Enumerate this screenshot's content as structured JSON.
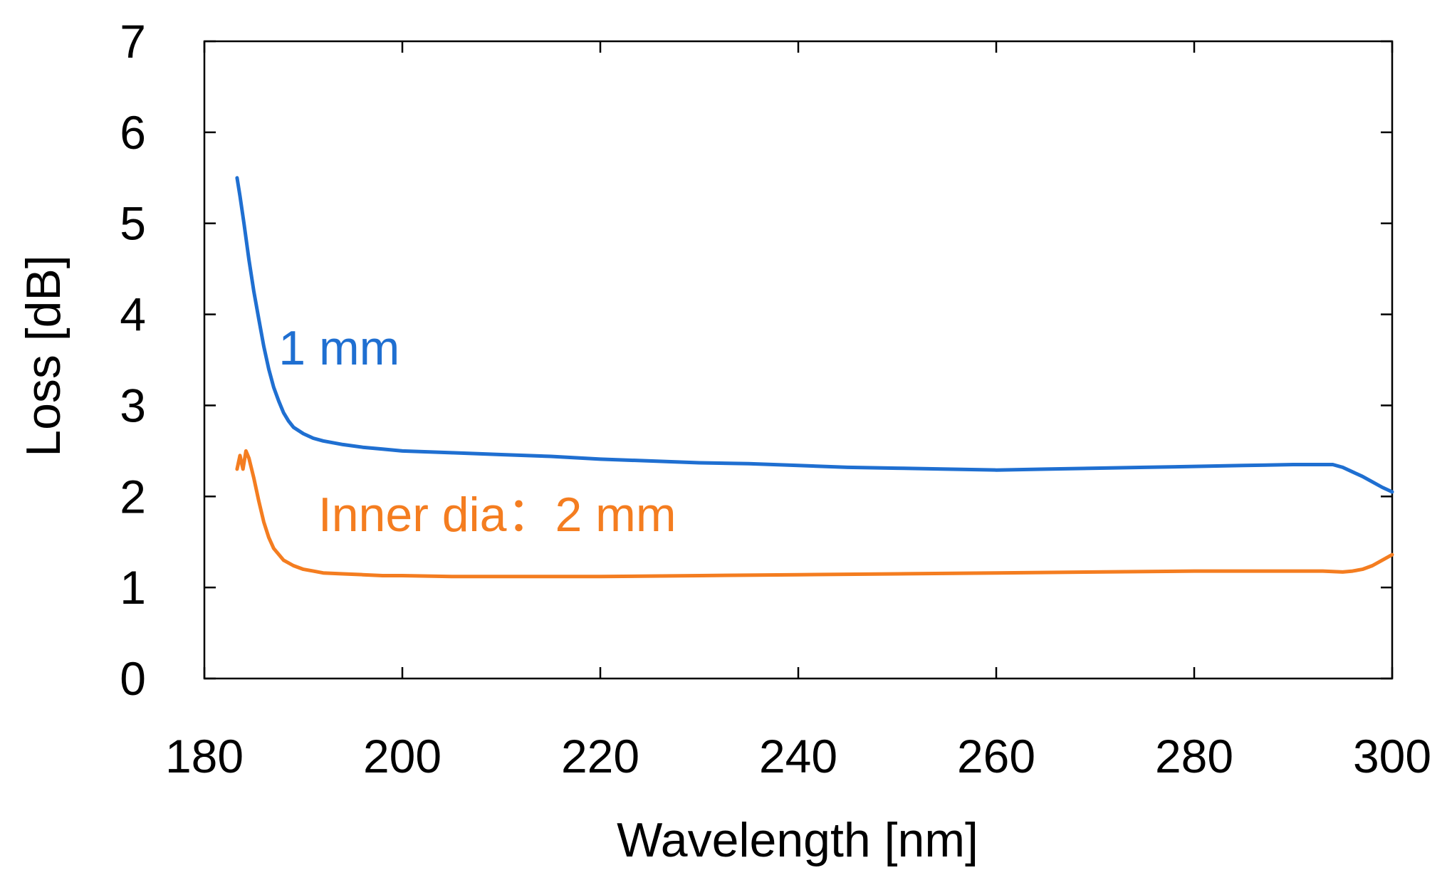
{
  "chart_data": {
    "type": "line",
    "title": "",
    "xlabel": "Wavelength [nm]",
    "ylabel": "Loss [dB]",
    "xlim": [
      180,
      300
    ],
    "ylim": [
      0,
      7
    ],
    "xticks": [
      180,
      200,
      220,
      240,
      260,
      280,
      300
    ],
    "yticks": [
      0,
      1,
      2,
      3,
      4,
      5,
      6,
      7
    ],
    "grid": false,
    "legend": "none",
    "series": [
      {
        "name": "1 mm",
        "color": "#1f6fd1",
        "x": [
          183.3,
          183.6,
          184.0,
          184.5,
          185.0,
          185.5,
          186.0,
          186.5,
          187.0,
          187.5,
          188.0,
          188.5,
          189.0,
          190.0,
          191.0,
          192.0,
          194.0,
          196.0,
          198.0,
          200.0,
          205.0,
          210.0,
          215.0,
          220.0,
          225.0,
          230.0,
          235.0,
          240.0,
          245.0,
          250.0,
          255.0,
          260.0,
          265.0,
          270.0,
          275.0,
          280.0,
          285.0,
          290.0,
          292.0,
          294.0,
          295.0,
          296.0,
          297.0,
          298.0,
          299.0,
          300.0
        ],
        "y": [
          5.5,
          5.3,
          5.0,
          4.6,
          4.25,
          3.95,
          3.65,
          3.4,
          3.2,
          3.05,
          2.92,
          2.83,
          2.76,
          2.69,
          2.64,
          2.61,
          2.57,
          2.54,
          2.52,
          2.5,
          2.48,
          2.46,
          2.44,
          2.41,
          2.39,
          2.37,
          2.36,
          2.34,
          2.32,
          2.31,
          2.3,
          2.29,
          2.3,
          2.31,
          2.32,
          2.33,
          2.34,
          2.35,
          2.35,
          2.35,
          2.32,
          2.27,
          2.22,
          2.16,
          2.1,
          2.05
        ]
      },
      {
        "name": "Inner dia：2 mm",
        "color": "#f47d20",
        "x": [
          183.3,
          183.6,
          183.9,
          184.2,
          184.5,
          185.0,
          185.5,
          186.0,
          186.5,
          187.0,
          188.0,
          189.0,
          190.0,
          191.0,
          192.0,
          194.0,
          196.0,
          198.0,
          200.0,
          205.0,
          210.0,
          220.0,
          230.0,
          240.0,
          250.0,
          260.0,
          270.0,
          280.0,
          285.0,
          290.0,
          293.0,
          295.0,
          296.0,
          297.0,
          298.0,
          299.0,
          300.0
        ],
        "y": [
          2.3,
          2.45,
          2.3,
          2.5,
          2.42,
          2.2,
          1.95,
          1.72,
          1.55,
          1.43,
          1.3,
          1.24,
          1.2,
          1.18,
          1.16,
          1.15,
          1.14,
          1.13,
          1.13,
          1.12,
          1.12,
          1.12,
          1.13,
          1.14,
          1.15,
          1.16,
          1.17,
          1.18,
          1.18,
          1.18,
          1.18,
          1.17,
          1.18,
          1.2,
          1.24,
          1.3,
          1.36
        ]
      }
    ],
    "annotations": [
      {
        "text": "1 mm",
        "series": "1 mm",
        "x": 187.5,
        "y": 3.45
      },
      {
        "text": "Inner dia：2 mm",
        "series": "Inner dia：2 mm",
        "x": 191.5,
        "y": 1.62
      }
    ]
  }
}
